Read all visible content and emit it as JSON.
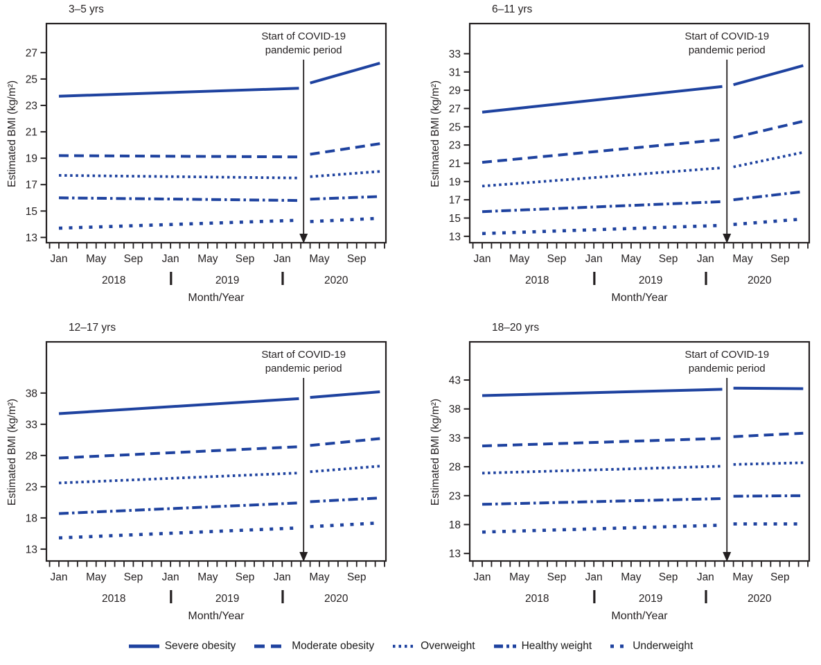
{
  "colors": {
    "line": "#1e429f",
    "text": "#231f20",
    "axis": "#231f20",
    "background": "#ffffff"
  },
  "axes": {
    "ylabel": "Estimated BMI (kg/m²)",
    "xlabel": "Month/Year",
    "month_tick_labels": [
      {
        "month": "Jan",
        "index": 0
      },
      {
        "month": "May",
        "index": 4
      },
      {
        "month": "Sep",
        "index": 8
      },
      {
        "month": "Jan",
        "index": 12
      },
      {
        "month": "May",
        "index": 16
      },
      {
        "month": "Sep",
        "index": 20
      },
      {
        "month": "Jan",
        "index": 24
      },
      {
        "month": "May",
        "index": 28
      },
      {
        "month": "Sep",
        "index": 32
      }
    ],
    "year_labels": [
      {
        "label": "2018",
        "index": 5.9
      },
      {
        "label": "2019",
        "index": 18.1
      },
      {
        "label": "2020",
        "index": 29.8
      }
    ],
    "year_separator_indices": [
      12.05,
      24.05
    ]
  },
  "annotation": {
    "lines": [
      "Start of COVID-19",
      "pandemic period"
    ],
    "arrow_month_index": 26.3,
    "pandemic_start": "Mar 2020"
  },
  "timeline": {
    "start": "Jan 2018",
    "end": "Dec 2020",
    "x_unit": "months since Jan 2018",
    "pre_months": [
      0,
      25.8
    ],
    "post_months": [
      27,
      34.5
    ]
  },
  "chart_data": [
    {
      "type": "line",
      "title": "3–5 yrs",
      "ylabel": "Estimated BMI (kg/m²)",
      "xlabel": "Month/Year",
      "yticks": [
        13,
        15,
        17,
        19,
        21,
        23,
        25,
        27
      ],
      "ylim": [
        12.6,
        29.2
      ],
      "series": [
        {
          "name": "Severe obesity",
          "style": "solid",
          "pre": [
            23.7,
            24.3
          ],
          "post": [
            24.7,
            26.2
          ]
        },
        {
          "name": "Moderate obesity",
          "style": "dashed",
          "pre": [
            19.2,
            19.1
          ],
          "post": [
            19.3,
            20.1
          ]
        },
        {
          "name": "Overweight",
          "style": "dotted",
          "pre": [
            17.7,
            17.5
          ],
          "post": [
            17.6,
            18.0
          ]
        },
        {
          "name": "Healthy weight",
          "style": "dashdot",
          "pre": [
            16.0,
            15.8
          ],
          "post": [
            15.9,
            16.1
          ]
        },
        {
          "name": "Underweight",
          "style": "shortdash",
          "pre": [
            13.7,
            14.3
          ],
          "post": [
            14.2,
            14.45
          ]
        }
      ]
    },
    {
      "type": "line",
      "title": "6–11 yrs",
      "ylabel": "Estimated BMI (kg/m²)",
      "xlabel": "Month/Year",
      "yticks": [
        13,
        15,
        17,
        19,
        21,
        23,
        25,
        27,
        29,
        31,
        33
      ],
      "ylim": [
        12.3,
        36.3
      ],
      "series": [
        {
          "name": "Severe obesity",
          "style": "solid",
          "pre": [
            26.6,
            29.4
          ],
          "post": [
            29.6,
            31.7
          ]
        },
        {
          "name": "Moderate obesity",
          "style": "dashed",
          "pre": [
            21.1,
            23.6
          ],
          "post": [
            23.8,
            25.6
          ]
        },
        {
          "name": "Overweight",
          "style": "dotted",
          "pre": [
            18.5,
            20.5
          ],
          "post": [
            20.6,
            22.2
          ]
        },
        {
          "name": "Healthy weight",
          "style": "dashdot",
          "pre": [
            15.7,
            16.8
          ],
          "post": [
            17.0,
            17.9
          ]
        },
        {
          "name": "Underweight",
          "style": "shortdash",
          "pre": [
            13.3,
            14.2
          ],
          "post": [
            14.3,
            14.9
          ]
        }
      ]
    },
    {
      "type": "line",
      "title": "12–17 yrs",
      "ylabel": "Estimated BMI (kg/m²)",
      "xlabel": "Month/Year",
      "yticks": [
        13,
        18,
        23,
        28,
        33,
        38
      ],
      "ylim": [
        11.1,
        46.2
      ],
      "series": [
        {
          "name": "Severe obesity",
          "style": "solid",
          "pre": [
            34.7,
            37.1
          ],
          "post": [
            37.3,
            38.2
          ]
        },
        {
          "name": "Moderate obesity",
          "style": "dashed",
          "pre": [
            27.6,
            29.4
          ],
          "post": [
            29.6,
            30.7
          ]
        },
        {
          "name": "Overweight",
          "style": "dotted",
          "pre": [
            23.6,
            25.2
          ],
          "post": [
            25.4,
            26.3
          ]
        },
        {
          "name": "Healthy weight",
          "style": "dashdot",
          "pre": [
            18.7,
            20.4
          ],
          "post": [
            20.6,
            21.2
          ]
        },
        {
          "name": "Underweight",
          "style": "shortdash",
          "pre": [
            14.8,
            16.4
          ],
          "post": [
            16.6,
            17.2
          ]
        }
      ]
    },
    {
      "type": "line",
      "title": "18–20 yrs",
      "ylabel": "Estimated BMI (kg/m²)",
      "xlabel": "Month/Year",
      "yticks": [
        13,
        18,
        23,
        28,
        33,
        38,
        43
      ],
      "ylim": [
        11.7,
        49.6
      ],
      "series": [
        {
          "name": "Severe obesity",
          "style": "solid",
          "pre": [
            40.3,
            41.4
          ],
          "post": [
            41.6,
            41.5
          ]
        },
        {
          "name": "Moderate obesity",
          "style": "dashed",
          "pre": [
            31.6,
            32.9
          ],
          "post": [
            33.2,
            33.8
          ]
        },
        {
          "name": "Overweight",
          "style": "dotted",
          "pre": [
            26.9,
            28.1
          ],
          "post": [
            28.4,
            28.7
          ]
        },
        {
          "name": "Healthy weight",
          "style": "dashdot",
          "pre": [
            21.5,
            22.5
          ],
          "post": [
            22.9,
            23.0
          ]
        },
        {
          "name": "Underweight",
          "style": "shortdash",
          "pre": [
            16.7,
            17.9
          ],
          "post": [
            18.1,
            18.1
          ]
        }
      ]
    }
  ],
  "legend": {
    "items": [
      {
        "label": "Severe obesity",
        "style": "solid"
      },
      {
        "label": "Moderate obesity",
        "style": "dashed"
      },
      {
        "label": "Overweight",
        "style": "dotted"
      },
      {
        "label": "Healthy weight",
        "style": "dashdot"
      },
      {
        "label": "Underweight",
        "style": "shortdash"
      }
    ]
  }
}
